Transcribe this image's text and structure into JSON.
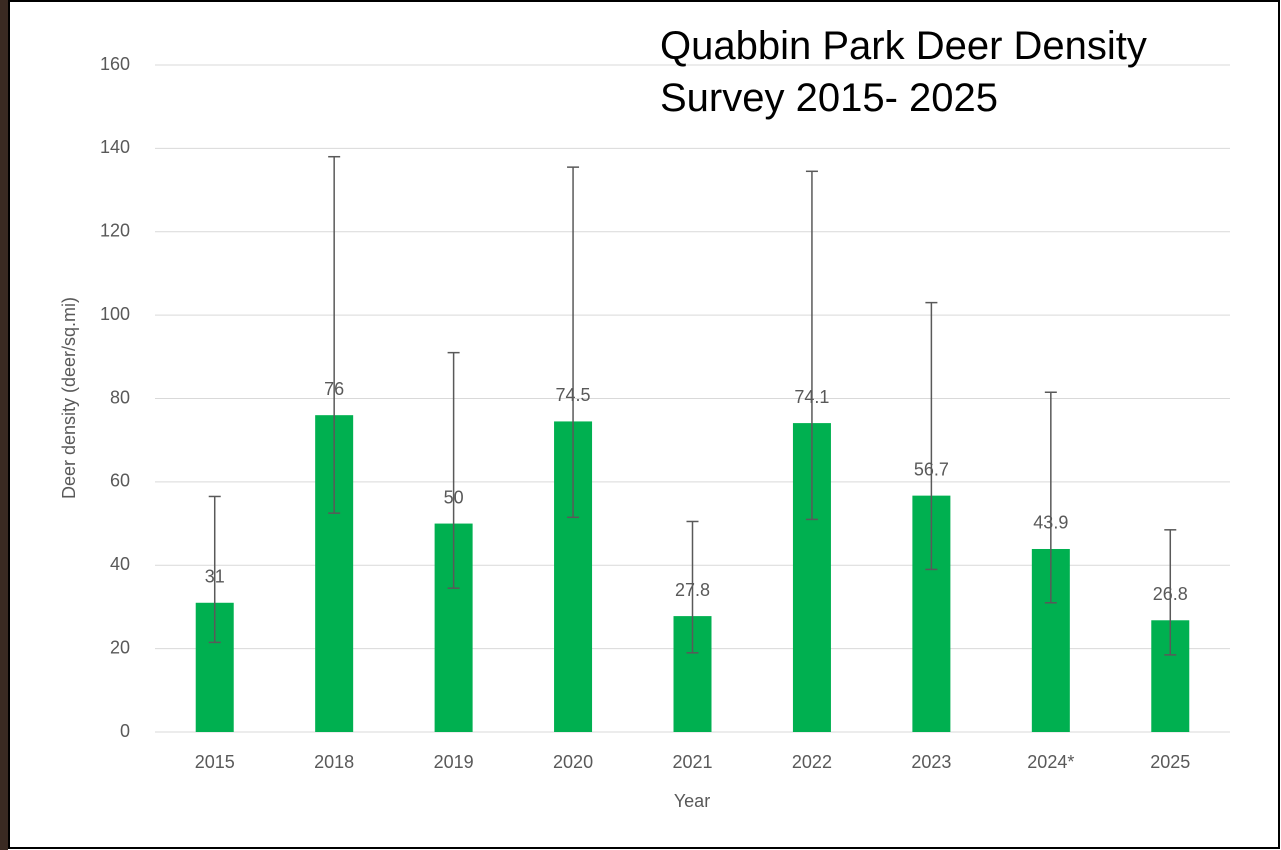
{
  "chart_data": {
    "type": "bar",
    "title": "Quabbin Park Deer Density Survey 2015- 2025",
    "x_label": "Year",
    "y_label": "Deer density (deer/sq.mi)",
    "categories": [
      "2015",
      "2018",
      "2019",
      "2020",
      "2021",
      "2022",
      "2023",
      "2024*",
      "2025"
    ],
    "values": [
      31,
      76,
      50,
      74.5,
      27.8,
      74.1,
      56.7,
      43.9,
      26.8
    ],
    "error_low": [
      21.5,
      52.5,
      34.5,
      51.5,
      19,
      51,
      39,
      31,
      18.5
    ],
    "error_high": [
      56.5,
      138,
      91,
      135.5,
      50.5,
      134.5,
      103,
      81.5,
      48.5
    ],
    "color": "#00b050",
    "error_color": "#595959",
    "ylim": [
      0,
      160
    ],
    "yticks": [
      0,
      20,
      40,
      60,
      80,
      100,
      120,
      140,
      160
    ],
    "grid": true
  }
}
